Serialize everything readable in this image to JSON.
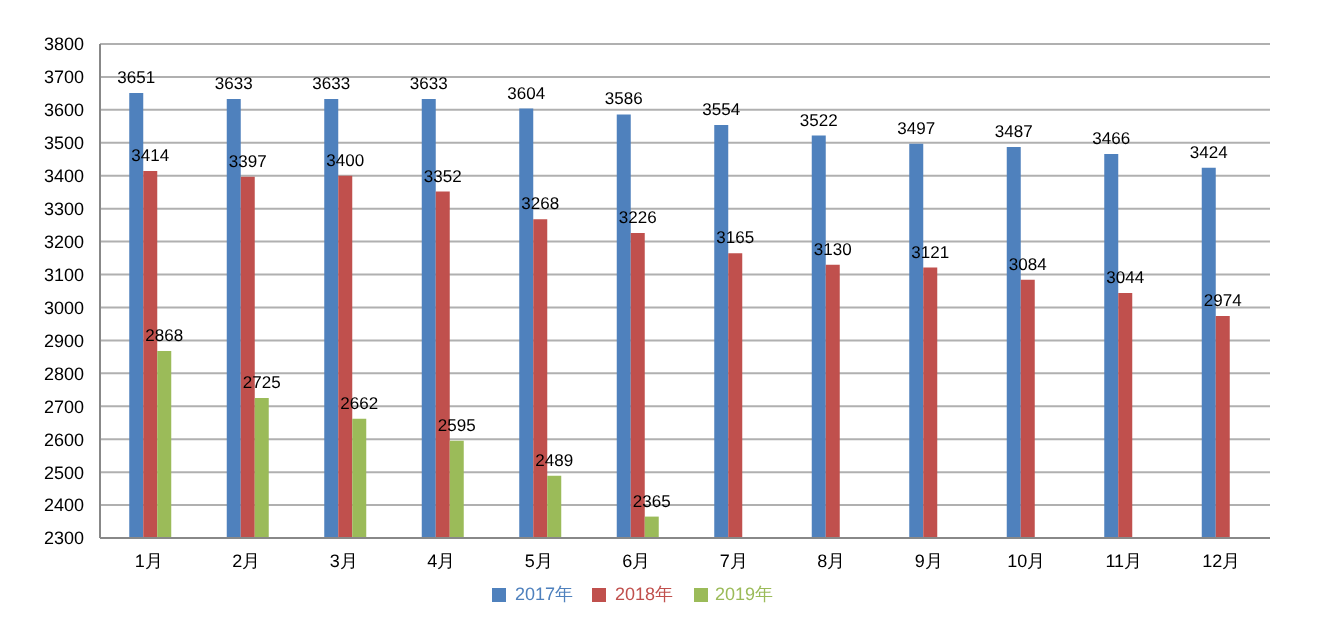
{
  "chart_data": {
    "type": "bar",
    "categories": [
      "1月",
      "2月",
      "3月",
      "4月",
      "5月",
      "6月",
      "7月",
      "8月",
      "9月",
      "10月",
      "11月",
      "12月"
    ],
    "series": [
      {
        "name": "2017年",
        "color": "#4f81bd",
        "values": [
          3651,
          3633,
          3633,
          3633,
          3604,
          3586,
          3554,
          3522,
          3497,
          3487,
          3466,
          3424
        ]
      },
      {
        "name": "2018年",
        "color": "#c0504d",
        "values": [
          3414,
          3397,
          3400,
          3352,
          3268,
          3226,
          3165,
          3130,
          3121,
          3084,
          3044,
          2974
        ]
      },
      {
        "name": "2019年",
        "color": "#9bbb59",
        "values": [
          2868,
          2725,
          2662,
          2595,
          2489,
          2365,
          null,
          null,
          null,
          null,
          null,
          null
        ]
      }
    ],
    "ylim": [
      2300,
      3800
    ],
    "yticks": [
      2300,
      2400,
      2500,
      2600,
      2700,
      2800,
      2900,
      3000,
      3100,
      3200,
      3300,
      3400,
      3500,
      3600,
      3700,
      3800
    ],
    "grid": "y",
    "legend": "bottom",
    "data_labels": true
  }
}
